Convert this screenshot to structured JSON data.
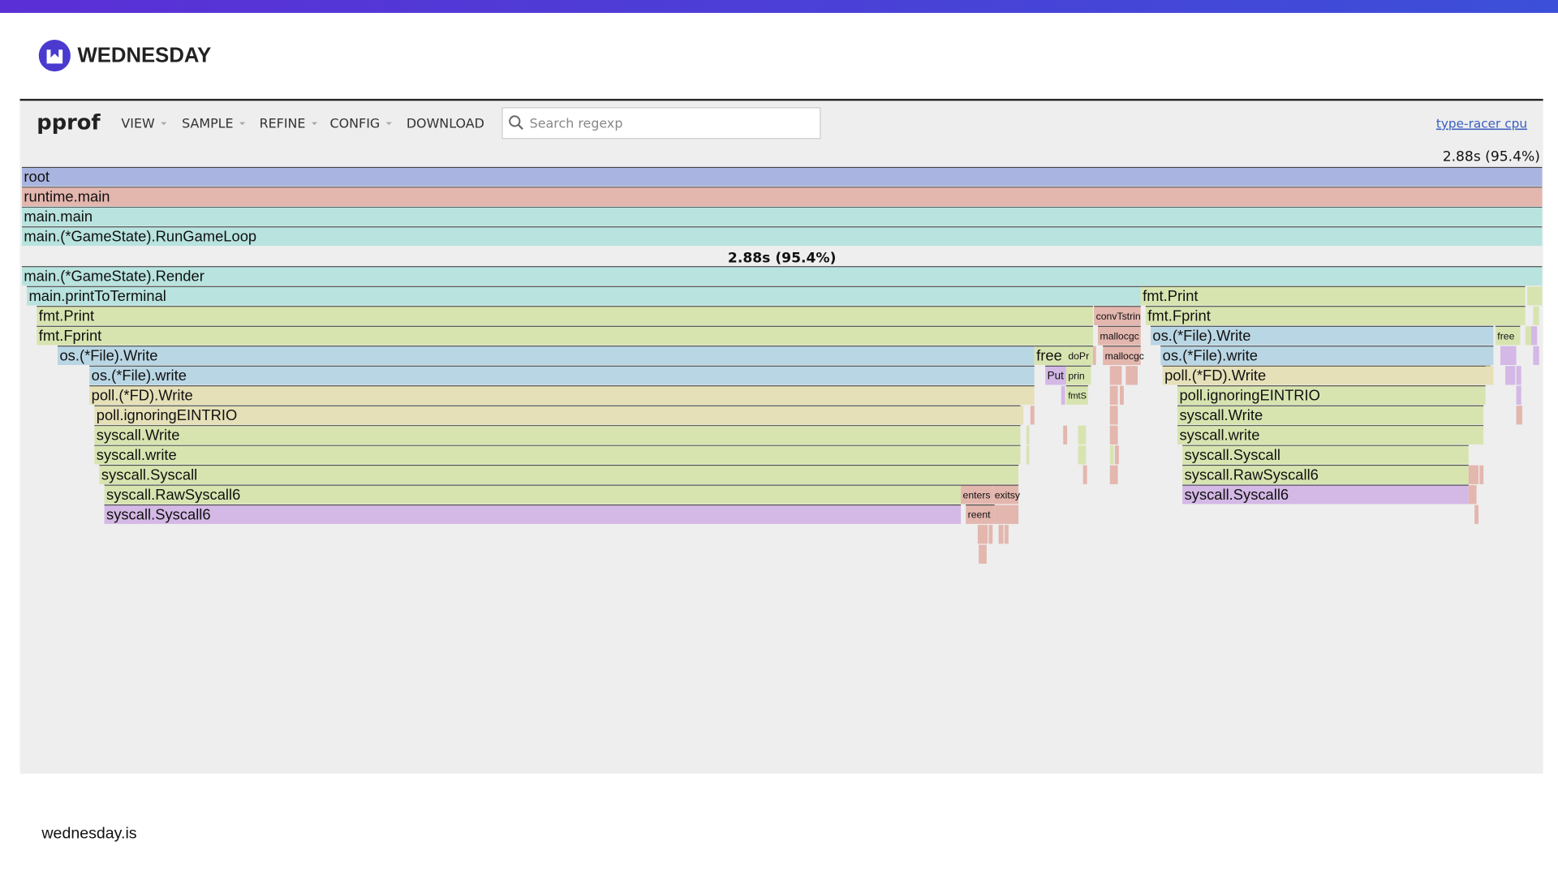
{
  "header": {
    "brand": "WEDNESDAY"
  },
  "toolbar": {
    "title": "pprof",
    "menu": [
      "VIEW",
      "SAMPLE",
      "REFINE",
      "CONFIG",
      "DOWNLOAD"
    ],
    "search_placeholder": "Search regexp",
    "profile_link": "type-racer cpu"
  },
  "flame": {
    "total": "2.88s (95.4%)",
    "hover": "2.88s (95.4%)",
    "frames": [
      {
        "label": "root"
      },
      {
        "label": "runtime.main"
      },
      {
        "label": "main.main"
      },
      {
        "label": "main.(*GameState).RunGameLoop"
      },
      {
        "label": "main.(*GameState).Render"
      },
      {
        "label": "main.printToTerminal"
      },
      {
        "label": "fmt.Print"
      },
      {
        "label": "fmt.Print"
      },
      {
        "label": "convTstrin"
      },
      {
        "label": "fmt.Fprint"
      },
      {
        "label": "fmt.Fprint"
      },
      {
        "label": "mallocgc"
      },
      {
        "label": "os.(*File).Write"
      },
      {
        "label": "free"
      },
      {
        "label": "os.(*File).Write"
      },
      {
        "label": "free"
      },
      {
        "label": "doPr"
      },
      {
        "label": "mallocgc"
      },
      {
        "label": "os.(*File).write"
      },
      {
        "label": "os.(*File).write"
      },
      {
        "label": "Put"
      },
      {
        "label": "prin"
      },
      {
        "label": "poll.(*FD).Write"
      },
      {
        "label": "poll.(*FD).Write"
      },
      {
        "label": "fmtS"
      },
      {
        "label": "poll.ignoringEINTRIO"
      },
      {
        "label": "poll.ignoringEINTRIO"
      },
      {
        "label": "syscall.Write"
      },
      {
        "label": "syscall.Write"
      },
      {
        "label": "syscall.write"
      },
      {
        "label": "syscall.write"
      },
      {
        "label": "syscall.Syscall"
      },
      {
        "label": "syscall.Syscall"
      },
      {
        "label": "syscall.RawSyscall6"
      },
      {
        "label": "syscall.RawSyscall6"
      },
      {
        "label": "enters"
      },
      {
        "label": "exitsy"
      },
      {
        "label": "syscall.Syscall6"
      },
      {
        "label": "syscall.Syscall6"
      },
      {
        "label": "reent"
      }
    ]
  },
  "footer": "wednesday.is"
}
